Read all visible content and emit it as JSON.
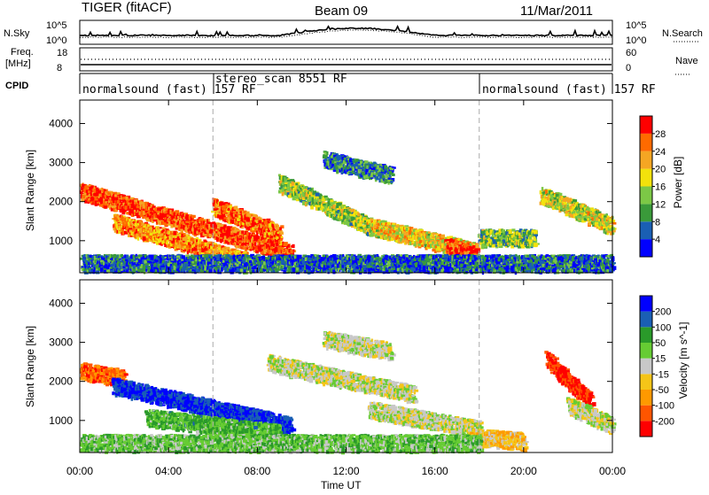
{
  "header": {
    "station": "TIGER (fitACF)",
    "beam": "Beam 09",
    "date": "11/Mar/2011"
  },
  "panels": {
    "nsky": {
      "left_label": "N.Sky",
      "right_label": "N.Search",
      "tick_top_left": "10^5",
      "tick_bot_left": "10^0",
      "tick_top_right": "10^5",
      "tick_bot_right": "10^0"
    },
    "freq": {
      "left_label_1": "Freq.",
      "left_label_2": "[MHz]",
      "tick_top_left": "18",
      "tick_bot_left": "8",
      "right_label": "Nave",
      "tick_top_right": "60",
      "tick_bot_right": "0"
    },
    "cpid": {
      "left_label": "CPID"
    }
  },
  "modes": [
    {
      "text": "normalsound (fast) 157 RF",
      "start_hour": 0
    },
    {
      "text": "stereo_scan 8551 RF",
      "start_hour": 6
    },
    {
      "text": "normalsound (fast) 157 RF",
      "start_hour": 18
    }
  ],
  "chart_data": [
    {
      "type": "heatmap",
      "name": "power",
      "xlabel": "Time UT",
      "ylabel": "Slant Range [km]",
      "x_range_hours": [
        0,
        24
      ],
      "x_ticks": [
        "00:00",
        "04:00",
        "08:00",
        "12:00",
        "16:00",
        "20:00",
        "00:00"
      ],
      "y_range": [
        180,
        4600
      ],
      "y_ticks": [
        1000,
        2000,
        3000,
        4000
      ],
      "colorbar": {
        "label": "Power [dB]",
        "ticks": [
          "28",
          "24",
          "20",
          "16",
          "12",
          "8",
          "4"
        ],
        "range": [
          0,
          30
        ],
        "colors": [
          "#0000ff",
          "#1a5fb4",
          "#3a9a3a",
          "#7cc846",
          "#f2e20c",
          "#f5a623",
          "#ff6a00",
          "#ff0000"
        ]
      },
      "echo_bands": [
        {
          "label": "",
          "t_start": 0.0,
          "t_end": 9.5,
          "r_start": 2300,
          "r_end": 700,
          "intensity": 26
        },
        {
          "label": "",
          "t_start": 1.5,
          "t_end": 7.5,
          "r_start": 1500,
          "r_end": 500,
          "intensity": 22
        },
        {
          "label": "",
          "t_start": 6.0,
          "t_end": 9.0,
          "r_start": 1900,
          "r_end": 1200,
          "intensity": 24
        },
        {
          "label": "",
          "t_start": 9.0,
          "t_end": 13.0,
          "r_start": 2500,
          "r_end": 1400,
          "intensity": 14
        },
        {
          "label": "",
          "t_start": 11.0,
          "t_end": 14.0,
          "r_start": 3100,
          "r_end": 2700,
          "intensity": 8
        },
        {
          "label": "",
          "t_start": 13.0,
          "t_end": 17.8,
          "r_start": 1400,
          "r_end": 750,
          "intensity": 18
        },
        {
          "label": "",
          "t_start": 16.5,
          "t_end": 17.8,
          "r_start": 900,
          "r_end": 650,
          "intensity": 26
        },
        {
          "label": "",
          "t_start": 18.0,
          "t_end": 20.5,
          "r_start": 1100,
          "r_end": 1100,
          "intensity": 12
        },
        {
          "label": "",
          "t_start": 20.8,
          "t_end": 24.0,
          "r_start": 2200,
          "r_end": 1400,
          "intensity": 16
        },
        {
          "label": "",
          "t_start": 0.0,
          "t_end": 24.0,
          "r_start": 450,
          "r_end": 450,
          "intensity": 6
        }
      ]
    },
    {
      "type": "heatmap",
      "name": "velocity",
      "xlabel": "Time UT",
      "ylabel": "Slant Range [km]",
      "x_range_hours": [
        0,
        24
      ],
      "x_ticks": [
        "00:00",
        "04:00",
        "08:00",
        "12:00",
        "16:00",
        "20:00",
        "00:00"
      ],
      "y_range": [
        180,
        4600
      ],
      "y_ticks": [
        1000,
        2000,
        3000,
        4000
      ],
      "colorbar": {
        "label": "Velocity [m s^-1]",
        "ticks": [
          "200",
          "100",
          "50",
          "15",
          "-15",
          "-50",
          "-100",
          "-200"
        ],
        "range": [
          -250,
          250
        ],
        "colors": [
          "#ff0000",
          "#ff5500",
          "#ff9900",
          "#f5c518",
          "#c8c8c8",
          "#66cc33",
          "#2a9a2a",
          "#1a5fb4",
          "#0000ff"
        ]
      },
      "echo_bands": [
        {
          "label": "",
          "t_start": 0.0,
          "t_end": 2.0,
          "r_start": 2300,
          "r_end": 2100,
          "velocity": -150
        },
        {
          "label": "",
          "t_start": 1.5,
          "t_end": 9.5,
          "r_start": 1900,
          "r_end": 900,
          "velocity": 200
        },
        {
          "label": "",
          "t_start": 3.0,
          "t_end": 9.0,
          "r_start": 1100,
          "r_end": 700,
          "velocity": 80
        },
        {
          "label": "",
          "t_start": 8.5,
          "t_end": 15.0,
          "r_start": 2500,
          "r_end": 1700,
          "velocity": 0
        },
        {
          "label": "",
          "t_start": 11.0,
          "t_end": 14.0,
          "r_start": 3100,
          "r_end": 2800,
          "velocity": 0
        },
        {
          "label": "",
          "t_start": 13.0,
          "t_end": 18.0,
          "r_start": 1300,
          "r_end": 800,
          "velocity": 0
        },
        {
          "label": "",
          "t_start": 17.5,
          "t_end": 20.0,
          "r_start": 600,
          "r_end": 500,
          "velocity": -60
        },
        {
          "label": "",
          "t_start": 21.0,
          "t_end": 23.0,
          "r_start": 2600,
          "r_end": 1500,
          "velocity": -200
        },
        {
          "label": "",
          "t_start": 22.0,
          "t_end": 24.0,
          "r_start": 1400,
          "r_end": 900,
          "velocity": 0
        },
        {
          "label": "",
          "t_start": 0.0,
          "t_end": 18.0,
          "r_start": 450,
          "r_end": 450,
          "velocity": 60
        }
      ]
    }
  ]
}
